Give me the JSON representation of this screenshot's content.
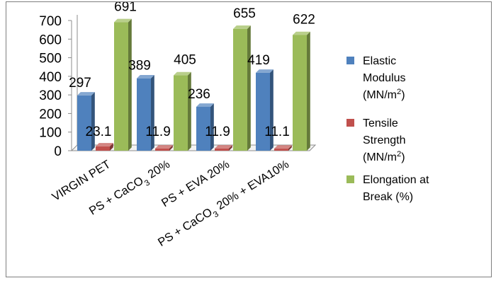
{
  "chart_data": {
    "type": "bar",
    "bar_style": "3d-clustered-column",
    "title": "",
    "xlabel": "",
    "ylabel": "",
    "ylim": [
      0,
      700
    ],
    "y_ticks": [
      0,
      100,
      200,
      300,
      400,
      500,
      600,
      700
    ],
    "grid": false,
    "legend_position": "right",
    "categories": [
      [
        "VIRGIN PET"
      ],
      [
        "PS + CaCO",
        {
          "sub": "3"
        },
        " 20%"
      ],
      [
        "PS + EVA 20%"
      ],
      [
        "PS + CaCO",
        {
          "sub": "3"
        },
        " 20% + EVA10%"
      ]
    ],
    "series": [
      {
        "name_lines": [
          "Elastic",
          "Modulus",
          [
            "(MN/m",
            {
              "sup": "2"
            },
            ")"
          ]
        ],
        "color": "#4f81bd",
        "values": [
          297,
          389,
          236,
          419
        ],
        "labels": [
          "297",
          "389",
          "236",
          "419"
        ]
      },
      {
        "name_lines": [
          "Tensile",
          "Strength",
          [
            "(MN/m",
            {
              "sup": "2"
            },
            ")"
          ]
        ],
        "color": "#c0504d",
        "values": [
          23.1,
          11.9,
          11.9,
          11.1
        ],
        "labels": [
          "23.1",
          "11.9",
          "11.9",
          "11.1"
        ]
      },
      {
        "name_lines": [
          "Elongation at",
          "Break (%)"
        ],
        "color": "#9bbb59",
        "values": [
          691,
          405,
          655,
          622
        ],
        "labels": [
          "691",
          "405",
          "655",
          "622"
        ]
      }
    ]
  }
}
